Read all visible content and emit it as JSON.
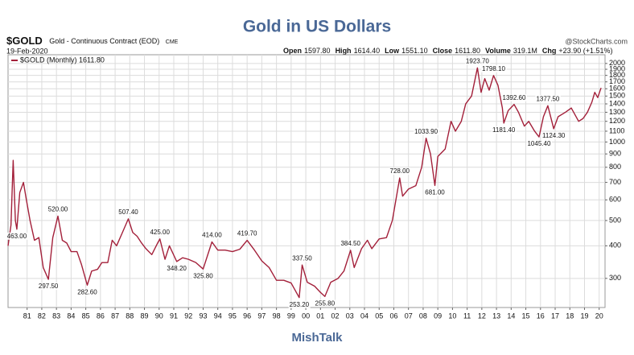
{
  "chart_data": {
    "type": "line",
    "title": "Gold in US Dollars",
    "symbol": "$GOLD",
    "description": "Gold - Continuous Contract (EOD)",
    "exchange": "CME",
    "date": "19-Feb-2020",
    "quote": [
      {
        "label": "Open",
        "value": "1597.80"
      },
      {
        "label": "High",
        "value": "1614.40"
      },
      {
        "label": "Low",
        "value": "1551.10"
      },
      {
        "label": "Close",
        "value": "1611.80"
      },
      {
        "label": "Volume",
        "value": "319.1M"
      },
      {
        "label": "Chg",
        "value": "+23.90 (+1.51%)"
      }
    ],
    "source": "@StockCharts.com",
    "footer": "MishTalk",
    "log_scale": true,
    "grid": true,
    "legend": "top-left",
    "xlim": [
      1979.7,
      2020.4
    ],
    "ylim": [
      232,
      2160
    ],
    "xticks": [
      {
        "value": 1981,
        "label": "81"
      },
      {
        "value": 1982,
        "label": "82"
      },
      {
        "value": 1983,
        "label": "83"
      },
      {
        "value": 1984,
        "label": "84"
      },
      {
        "value": 1985,
        "label": "85"
      },
      {
        "value": 1986,
        "label": "86"
      },
      {
        "value": 1987,
        "label": "87"
      },
      {
        "value": 1988,
        "label": "88"
      },
      {
        "value": 1989,
        "label": "89"
      },
      {
        "value": 1990,
        "label": "90"
      },
      {
        "value": 1991,
        "label": "91"
      },
      {
        "value": 1992,
        "label": "92"
      },
      {
        "value": 1993,
        "label": "93"
      },
      {
        "value": 1994,
        "label": "94"
      },
      {
        "value": 1995,
        "label": "95"
      },
      {
        "value": 1996,
        "label": "96"
      },
      {
        "value": 1997,
        "label": "97"
      },
      {
        "value": 1998,
        "label": "98"
      },
      {
        "value": 1999,
        "label": "99"
      },
      {
        "value": 2000,
        "label": "00"
      },
      {
        "value": 2001,
        "label": "01"
      },
      {
        "value": 2002,
        "label": "02"
      },
      {
        "value": 2003,
        "label": "03"
      },
      {
        "value": 2004,
        "label": "04"
      },
      {
        "value": 2005,
        "label": "05"
      },
      {
        "value": 2006,
        "label": "06"
      },
      {
        "value": 2007,
        "label": "07"
      },
      {
        "value": 2008,
        "label": "08"
      },
      {
        "value": 2009,
        "label": "09"
      },
      {
        "value": 2010,
        "label": "10"
      },
      {
        "value": 2011,
        "label": "11"
      },
      {
        "value": 2012,
        "label": "12"
      },
      {
        "value": 2013,
        "label": "13"
      },
      {
        "value": 2014,
        "label": "14"
      },
      {
        "value": 2015,
        "label": "15"
      },
      {
        "value": 2016,
        "label": "16"
      },
      {
        "value": 2017,
        "label": "17"
      },
      {
        "value": 2018,
        "label": "18"
      },
      {
        "value": 2019,
        "label": "19"
      },
      {
        "value": 2020,
        "label": "20"
      }
    ],
    "yticks": [
      300,
      400,
      500,
      600,
      700,
      800,
      900,
      1000,
      1100,
      1200,
      1300,
      1400,
      1500,
      1600,
      1700,
      1800,
      1900,
      2000
    ],
    "series": [
      {
        "name": "$GOLD (Monthly) 1611.80",
        "color": "#a3203a",
        "x": [
          1979.7,
          1979.9,
          1980.05,
          1980.2,
          1980.3,
          1980.5,
          1980.75,
          1980.95,
          1981.2,
          1981.5,
          1981.8,
          1982.1,
          1982.45,
          1982.75,
          1983.1,
          1983.4,
          1983.7,
          1984.0,
          1984.4,
          1984.7,
          1985.1,
          1985.4,
          1985.8,
          1986.1,
          1986.5,
          1986.8,
          1987.1,
          1987.5,
          1987.9,
          1988.2,
          1988.5,
          1988.8,
          1989.1,
          1989.5,
          1989.9,
          1990.05,
          1990.4,
          1990.7,
          1991.2,
          1991.6,
          1992.0,
          1992.5,
          1993.0,
          1993.6,
          1994.0,
          1994.5,
          1995.0,
          1995.5,
          1996.0,
          1996.5,
          1997.0,
          1997.5,
          1998.0,
          1998.5,
          1999.0,
          1999.55,
          1999.75,
          2000.1,
          2000.6,
          2001.0,
          2001.3,
          2001.7,
          2002.2,
          2002.6,
          2003.05,
          2003.3,
          2003.8,
          2004.2,
          2004.5,
          2005.0,
          2005.5,
          2005.9,
          2006.4,
          2006.6,
          2007.0,
          2007.5,
          2007.9,
          2008.2,
          2008.5,
          2008.8,
          2009.0,
          2009.5,
          2009.9,
          2010.2,
          2010.6,
          2010.9,
          2011.3,
          2011.7,
          2011.95,
          2012.2,
          2012.5,
          2012.8,
          2013.1,
          2013.4,
          2013.5,
          2013.8,
          2014.2,
          2014.5,
          2014.9,
          2015.2,
          2015.6,
          2015.9,
          2016.2,
          2016.5,
          2016.9,
          2017.2,
          2017.7,
          2018.1,
          2018.6,
          2018.9,
          2019.2,
          2019.5,
          2019.7,
          2019.9,
          2020.13
        ],
        "values": [
          400,
          480,
          850,
          500,
          463,
          640,
          700,
          600,
          500,
          420,
          430,
          330,
          297.5,
          430,
          520,
          420,
          410,
          380,
          380,
          340,
          282.6,
          320,
          325,
          345,
          345,
          420,
          400,
          450,
          507.4,
          450,
          435,
          410,
          390,
          370,
          410,
          425,
          355,
          400,
          348.2,
          360,
          355,
          345,
          325.8,
          414,
          385,
          385,
          380,
          388,
          419.7,
          385,
          350,
          330,
          295,
          295,
          288,
          253.2,
          337.5,
          290,
          280,
          265,
          255.8,
          290,
          300,
          320,
          384.5,
          330,
          390,
          420,
          390,
          425,
          430,
          500,
          728,
          620,
          660,
          680,
          800,
          1033.9,
          900,
          681,
          880,
          940,
          1200,
          1100,
          1200,
          1400,
          1500,
          1923.7,
          1550,
          1750,
          1580,
          1798.1,
          1650,
          1350,
          1181.4,
          1320,
          1392.6,
          1300,
          1150,
          1200,
          1100,
          1045.4,
          1250,
          1377.5,
          1124.3,
          1250,
          1300,
          1350,
          1200,
          1230,
          1300,
          1420,
          1550,
          1480,
          1611.8
        ]
      }
    ],
    "annotations": [
      {
        "x": 1980.3,
        "value": 463,
        "label": "463.00"
      },
      {
        "x": 1982.45,
        "value": 297.5,
        "label": "297.50"
      },
      {
        "x": 1983.1,
        "value": 520,
        "label": "520.00"
      },
      {
        "x": 1985.1,
        "value": 282.6,
        "label": "282.60"
      },
      {
        "x": 1987.9,
        "value": 507.4,
        "label": "507.40"
      },
      {
        "x": 1990.05,
        "value": 425,
        "label": "425.00"
      },
      {
        "x": 1991.2,
        "value": 348.2,
        "label": "348.20"
      },
      {
        "x": 1993.0,
        "value": 325.8,
        "label": "325.80"
      },
      {
        "x": 1993.6,
        "value": 414,
        "label": "414.00"
      },
      {
        "x": 1996.0,
        "value": 419.7,
        "label": "419.70"
      },
      {
        "x": 1999.55,
        "value": 253.2,
        "label": "253.20"
      },
      {
        "x": 1999.75,
        "value": 337.5,
        "label": "337.50"
      },
      {
        "x": 2001.3,
        "value": 255.8,
        "label": "255.80"
      },
      {
        "x": 2003.05,
        "value": 384.5,
        "label": "384.50"
      },
      {
        "x": 2006.4,
        "value": 728,
        "label": "728.00"
      },
      {
        "x": 2008.2,
        "value": 1033.9,
        "label": "1033.90"
      },
      {
        "x": 2008.8,
        "value": 681,
        "label": "681.00"
      },
      {
        "x": 2011.7,
        "value": 1923.7,
        "label": "1923.70"
      },
      {
        "x": 2012.8,
        "value": 1798.1,
        "label": "1798.10"
      },
      {
        "x": 2013.5,
        "value": 1181.4,
        "label": "1181.40"
      },
      {
        "x": 2014.2,
        "value": 1392.6,
        "label": "1392.60"
      },
      {
        "x": 2015.9,
        "value": 1045.4,
        "label": "1045.40"
      },
      {
        "x": 2016.5,
        "value": 1377.5,
        "label": "1377.50"
      },
      {
        "x": 2016.9,
        "value": 1124.3,
        "label": "1124.30"
      }
    ]
  }
}
